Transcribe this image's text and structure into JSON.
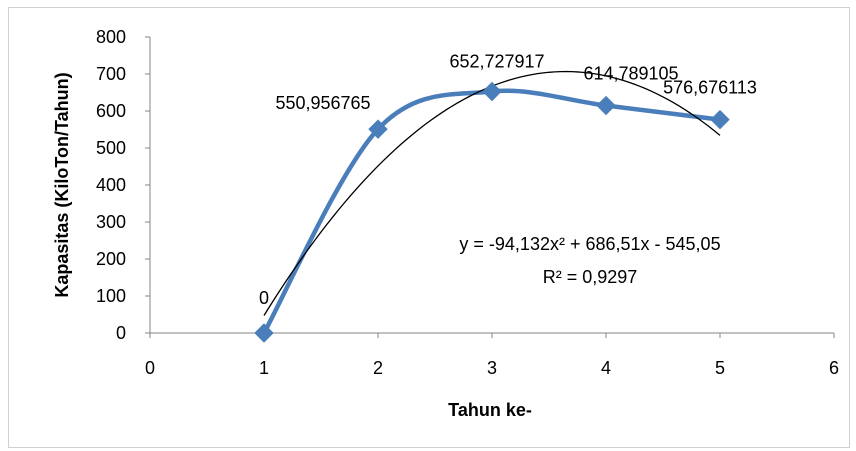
{
  "chart_data": {
    "type": "scatter",
    "title": "",
    "xlabel": "Tahun ke-",
    "ylabel": "Kapasitas (KiloTon/Tahun)",
    "xlim": [
      0,
      6
    ],
    "ylim": [
      0,
      800
    ],
    "x_ticks": [
      0,
      1,
      2,
      3,
      4,
      5,
      6
    ],
    "y_ticks": [
      0,
      100,
      200,
      300,
      400,
      500,
      600,
      700,
      800
    ],
    "grid": false,
    "legend": "none",
    "series": [
      {
        "x": [
          1,
          2,
          3,
          4,
          5
        ],
        "y": [
          0,
          550.956765,
          652.727917,
          614.789105,
          576.676113
        ],
        "data_labels": [
          "0",
          "550,956765",
          "652,727917",
          "614,789105",
          "576,676113"
        ],
        "color": "#4a7ebb",
        "marker": "diamond",
        "line": "smooth"
      }
    ],
    "trendline": {
      "type": "polynomial",
      "order": 2,
      "coefficients": [
        -94.132,
        686.51,
        -545.05
      ],
      "x_range": [
        1,
        5
      ],
      "color": "#000000",
      "equation_text": "y = -94,132x² + 686,51x - 545,05",
      "r2_text": "R² = 0,9297"
    }
  }
}
